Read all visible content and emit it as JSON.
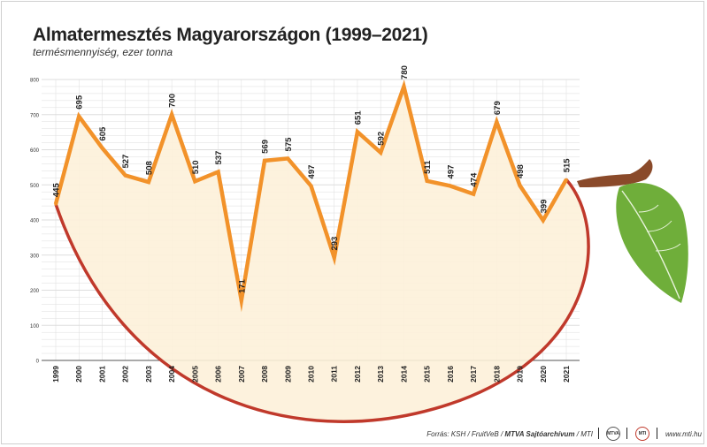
{
  "title": "Almatermesztés Magyarországon (1999–2021)",
  "subtitle": "termésmennyiség, ezer tonna",
  "footer": {
    "source_prefix": "Forrás: KSH / FruitVeB / ",
    "source_bold": "MTVA Sajtóarchívum",
    "source_suffix": " / MTI",
    "badge1": "MTVA",
    "badge2": "MTI",
    "site": "www.mti.hu"
  },
  "colors": {
    "line": "#f2922a",
    "fill": "#fdf1d9",
    "apple_rim": "#c0392b",
    "grid": "#dddddd",
    "leaf": "#6fae3a",
    "stem": "#8a4a2a"
  },
  "icons": {
    "badges": [
      "mtva-logo-icon",
      "mti-logo-icon"
    ],
    "decoration": "apple-stem-leaf-icon"
  },
  "chart_data": {
    "type": "area",
    "x": [
      "1999",
      "2000",
      "2001",
      "2002",
      "2003",
      "2004",
      "2005",
      "2006",
      "2007",
      "2008",
      "2009",
      "2010",
      "2011",
      "2012",
      "2013",
      "2014",
      "2015",
      "2016",
      "2017",
      "2018",
      "2019",
      "2020",
      "2021"
    ],
    "values": [
      445,
      695,
      605,
      527,
      508,
      700,
      510,
      537,
      171,
      569,
      575,
      497,
      293,
      651,
      592,
      780,
      511,
      497,
      474,
      679,
      498,
      399,
      515
    ],
    "data_labels": [
      "445",
      "695",
      "605",
      "527",
      "508",
      "700",
      "510",
      "537",
      "171",
      "569",
      "575",
      "497",
      "293",
      "651",
      "592",
      "780",
      "511",
      "497",
      "474",
      "679",
      "498",
      "399",
      "515"
    ],
    "yticks": [
      "0",
      "100",
      "200",
      "300",
      "400",
      "500",
      "600",
      "700",
      "800"
    ],
    "ylim": [
      0,
      800
    ],
    "grid": true,
    "xlabel": "",
    "ylabel": ""
  }
}
